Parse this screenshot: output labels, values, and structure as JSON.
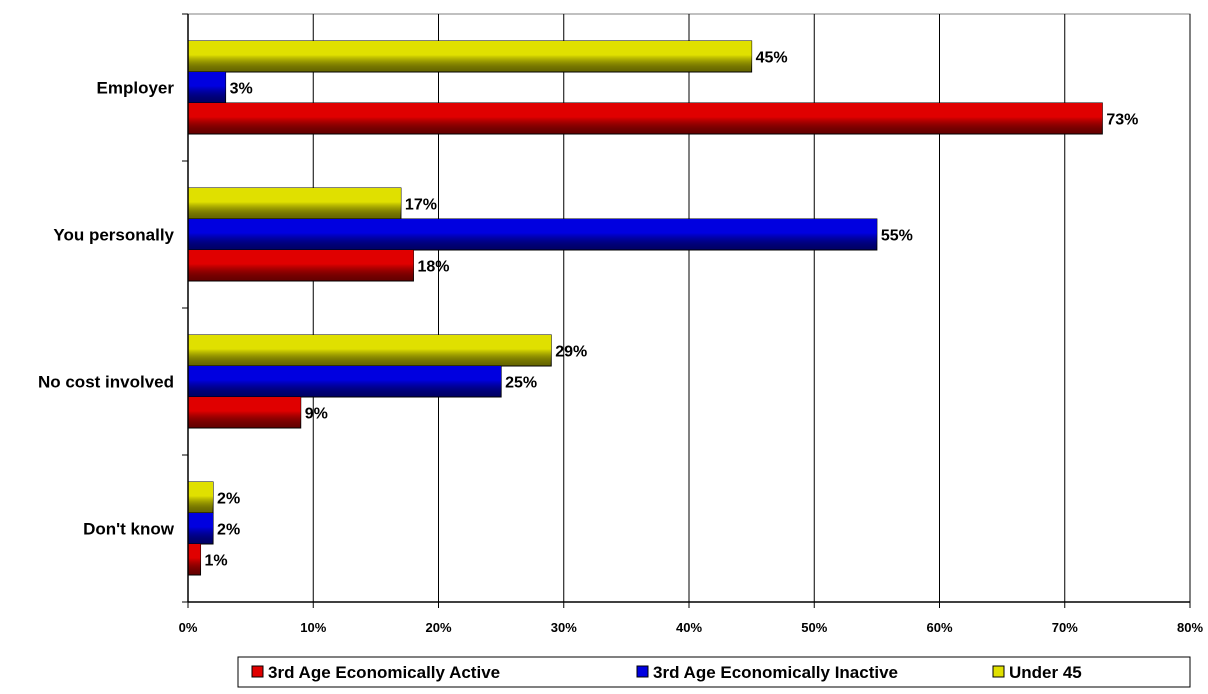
{
  "chart_data": {
    "type": "bar",
    "orientation": "horizontal",
    "categories": [
      "Employer",
      "You personally",
      "No cost involved",
      "Don't know"
    ],
    "series": [
      {
        "name": "3rd Age Economically Active",
        "color": "#e00000",
        "values": [
          73,
          18,
          9,
          1
        ],
        "labels": [
          "73%",
          "18%",
          "9%",
          "1%"
        ]
      },
      {
        "name": "3rd Age Economically Inactive",
        "color": "#0000e0",
        "values": [
          3,
          55,
          25,
          2
        ],
        "labels": [
          "3%",
          "55%",
          "25%",
          "2%"
        ]
      },
      {
        "name": "Under 45",
        "color": "#e0e000",
        "values": [
          45,
          17,
          29,
          2
        ],
        "labels": [
          "45%",
          "17%",
          "29%",
          "2%"
        ]
      }
    ],
    "xlim": [
      0,
      80
    ],
    "xticks": [
      0,
      10,
      20,
      30,
      40,
      50,
      60,
      70,
      80
    ],
    "xtick_labels": [
      "0%",
      "10%",
      "20%",
      "30%",
      "40%",
      "50%",
      "60%",
      "70%",
      "80%"
    ],
    "grid": "vertical",
    "legend": "bottom"
  }
}
